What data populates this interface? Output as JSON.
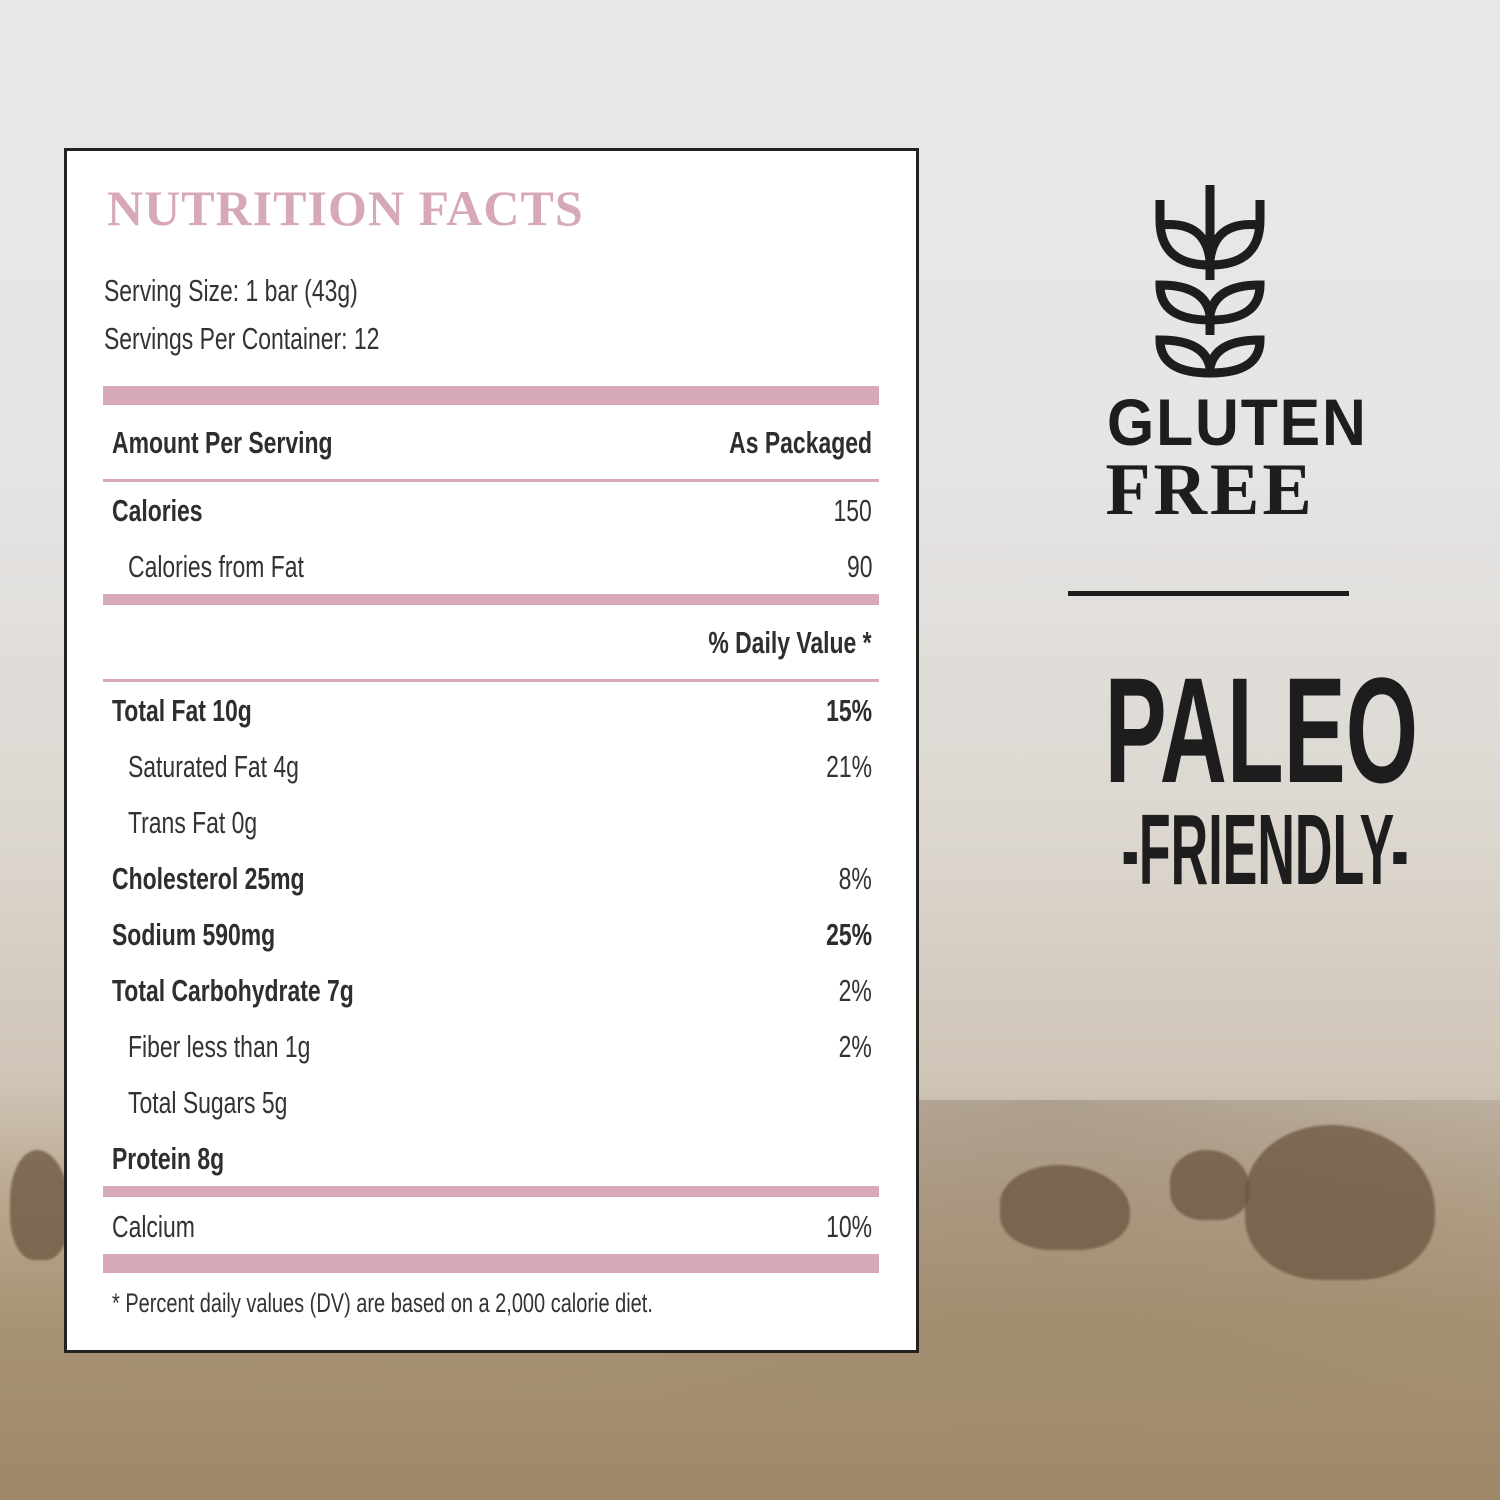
{
  "colors": {
    "accent": "#d7a9b6",
    "text": "#333333",
    "badge": "#1d1d1d"
  },
  "label": {
    "title": "NUTRITION FACTS",
    "serving_size": "Serving Size: 1 bar (43g)",
    "servings_per_container": "Servings Per Container: 12",
    "amount_per_serving": "Amount Per Serving",
    "as_packaged": "As Packaged",
    "calories": {
      "label": "Calories",
      "value": "150"
    },
    "calories_from_fat": {
      "label": "Calories from Fat",
      "value": "90"
    },
    "daily_value_header": "% Daily Value *",
    "nutrients": [
      {
        "label": "Total Fat 10g",
        "dv": "15%"
      },
      {
        "label": "Saturated Fat 4g",
        "dv": "21%"
      },
      {
        "label": "Trans Fat 0g",
        "dv": ""
      },
      {
        "label": "Cholesterol 25mg",
        "dv": "8%"
      },
      {
        "label": "Sodium  590mg",
        "dv": "25%"
      },
      {
        "label": "Total Carbohydrate 7g",
        "dv": "2%"
      },
      {
        "label": "Fiber less than 1g",
        "dv": "2%"
      },
      {
        "label": "Total Sugars 5g",
        "dv": ""
      },
      {
        "label": "Protein 8g",
        "dv": ""
      }
    ],
    "calcium": {
      "label": "Calcium",
      "dv": "10%"
    },
    "footnote": "* Percent daily values (DV) are based on a 2,000 calorie diet."
  },
  "badges": {
    "gluten": "GLUTEN",
    "free": "FREE",
    "icon": "wheat-icon",
    "paleo": "PALEO",
    "friendly": "-FRIENDLY-"
  }
}
